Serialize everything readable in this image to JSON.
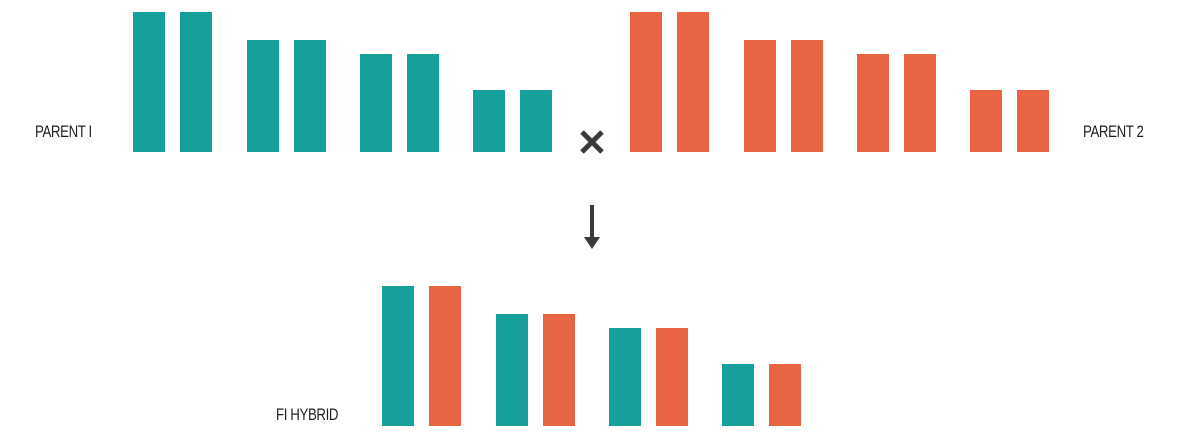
{
  "labels": {
    "parent1": "PARENT I",
    "parent2": "PARENT 2",
    "hybrid": "FI HYBRID"
  },
  "symbols": {
    "cross": "×",
    "arrow": "down-arrow-icon"
  },
  "colors": {
    "parent1": "#15a09c",
    "parent2": "#e96443",
    "symbol": "#3a3a3a"
  },
  "chromosome_pair_levels": [
    1.0,
    0.8,
    0.7,
    0.44
  ],
  "parent1_pairs": [
    "parent1",
    "parent1"
  ],
  "parent2_pairs": [
    "parent2",
    "parent2"
  ],
  "hybrid_pairs": [
    "parent1",
    "parent2"
  ]
}
